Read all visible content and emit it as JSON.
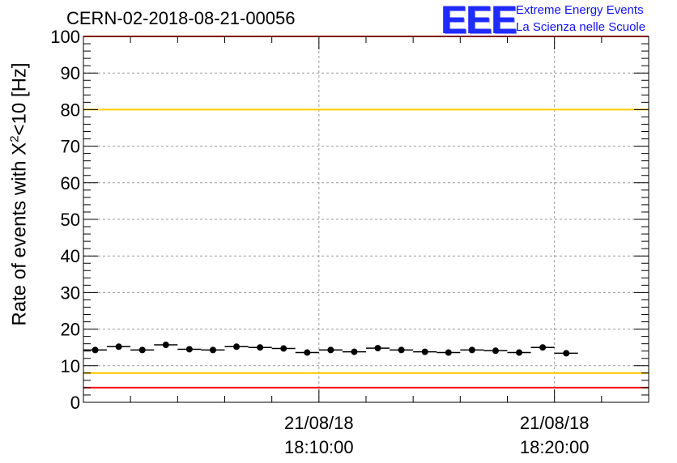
{
  "header": {
    "title": "CERN-02-2018-08-21-00056"
  },
  "logo": {
    "mark": "EEE",
    "line1": "Extreme Energy Events",
    "line2": "La Scienza nelle Scuole"
  },
  "chart_data": {
    "type": "scatter",
    "ylabel_prefix": "Rate of events with X",
    "ylabel_sup": "2",
    "ylabel_suffix": "<10 [Hz]",
    "ylim": [
      0,
      100
    ],
    "yticks": [
      0,
      10,
      20,
      30,
      40,
      50,
      60,
      70,
      80,
      90,
      100
    ],
    "xlim": [
      0,
      24
    ],
    "xtick_labels": [
      {
        "x": 10,
        "date": "21/08/18",
        "time": "18:10:00"
      },
      {
        "x": 20,
        "date": "21/08/18",
        "time": "18:20:00"
      }
    ],
    "grid": true,
    "reference_lines": [
      {
        "y": 100,
        "color": "#ff0000"
      },
      {
        "y": 80,
        "color": "#ffcc00"
      },
      {
        "y": 8,
        "color": "#ffcc00"
      },
      {
        "y": 4,
        "color": "#ff0000"
      }
    ],
    "series": [
      {
        "marker_color": "#000000",
        "x": [
          0.5,
          1.5,
          2.5,
          3.5,
          4.5,
          5.5,
          6.5,
          7.5,
          8.5,
          9.5,
          10.5,
          11.5,
          12.5,
          13.5,
          14.5,
          15.5,
          16.5,
          17.5,
          18.5,
          19.5,
          20.5
        ],
        "y": [
          14.3,
          15.2,
          14.3,
          15.7,
          14.5,
          14.3,
          15.2,
          15.0,
          14.7,
          13.6,
          14.3,
          13.8,
          14.8,
          14.3,
          13.8,
          13.6,
          14.3,
          14.1,
          13.6,
          15.0,
          13.4
        ]
      }
    ]
  }
}
